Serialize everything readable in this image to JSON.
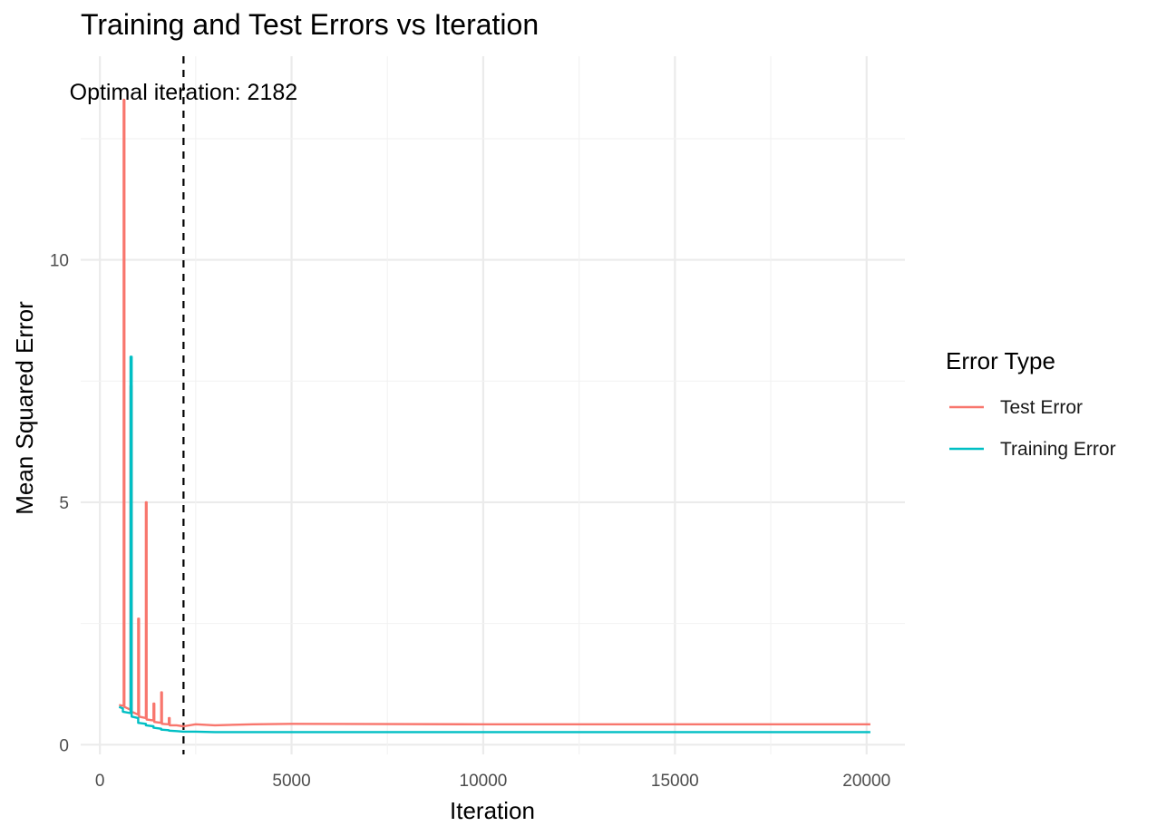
{
  "chart_data": {
    "type": "line",
    "title": "Training and Test Errors vs Iteration",
    "xlabel": "Iteration",
    "ylabel": "Mean Squared Error",
    "xlim": [
      -500,
      21000
    ],
    "ylim": [
      -0.2,
      14.2
    ],
    "x_ticks": [
      0,
      5000,
      10000,
      15000,
      20000
    ],
    "x_tick_labels": [
      "0",
      "5000",
      "10000",
      "15000",
      "20000"
    ],
    "y_ticks": [
      0,
      5,
      10
    ],
    "y_tick_labels": [
      "0",
      "5",
      "10"
    ],
    "grid": true,
    "legend": {
      "title": "Error Type",
      "placement": "right"
    },
    "annotation": {
      "text": "Optimal iteration: 2182",
      "x": 2182
    },
    "vline": {
      "x": 2182,
      "style": "dashed",
      "color": "#000000"
    },
    "series": [
      {
        "name": "Test Error",
        "color": "#F8766D",
        "x": [
          500,
          620,
          620,
          640,
          640,
          800,
          800,
          830,
          830,
          1000,
          1000,
          1020,
          1020,
          1200,
          1200,
          1220,
          1220,
          1400,
          1400,
          1420,
          1420,
          1600,
          1600,
          1620,
          1620,
          1800,
          1800,
          1820,
          1820,
          2000,
          2182,
          2500,
          3000,
          4000,
          5000,
          10000,
          15000,
          20100
        ],
        "y": [
          0.82,
          0.8,
          13.3,
          13.3,
          0.78,
          0.72,
          7.4,
          7.4,
          0.68,
          0.62,
          2.6,
          2.6,
          0.58,
          0.55,
          5.0,
          5.0,
          0.52,
          0.5,
          0.85,
          0.85,
          0.47,
          0.45,
          1.08,
          1.08,
          0.43,
          0.42,
          0.55,
          0.55,
          0.4,
          0.4,
          0.38,
          0.42,
          0.4,
          0.42,
          0.43,
          0.42,
          0.42,
          0.42
        ]
      },
      {
        "name": "Training Error",
        "color": "#00BFC4",
        "x": [
          500,
          600,
          600,
          800,
          800,
          830,
          830,
          1000,
          1000,
          1200,
          1200,
          1400,
          1400,
          1600,
          1600,
          1800,
          1800,
          2000,
          2182,
          2500,
          3000,
          4000,
          5000,
          10000,
          15000,
          20100
        ],
        "y": [
          0.78,
          0.75,
          0.68,
          0.65,
          8.0,
          8.0,
          0.58,
          0.55,
          0.45,
          0.43,
          0.4,
          0.38,
          0.35,
          0.33,
          0.31,
          0.3,
          0.29,
          0.28,
          0.27,
          0.27,
          0.26,
          0.26,
          0.26,
          0.26,
          0.26,
          0.26
        ]
      }
    ]
  }
}
